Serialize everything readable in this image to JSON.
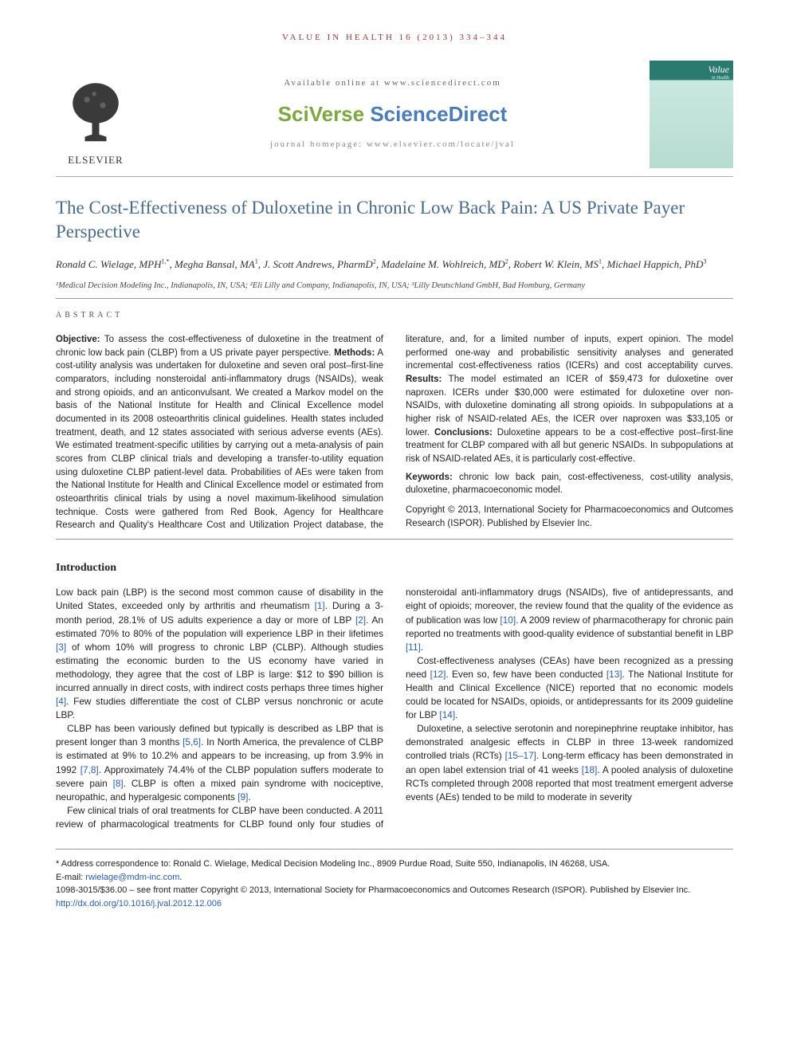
{
  "journal_header": "VALUE IN HEALTH 16 (2013) 334–344",
  "banner": {
    "available_text": "Available online at www.sciencedirect.com",
    "sciverse_sci": "SciVerse ",
    "sciverse_direct": "ScienceDirect",
    "homepage_text": "journal homepage: www.elsevier.com/locate/jval",
    "elsevier_name": "ELSEVIER",
    "cover_title": "Value",
    "cover_sub": "in Health"
  },
  "title": "The Cost-Effectiveness of Duloxetine in Chronic Low Back Pain: A US Private Payer Perspective",
  "authors_html": "Ronald C. Wielage, MPH<sup>1,*</sup>, Megha Bansal, MA<sup>1</sup>, J. Scott Andrews, PharmD<sup>2</sup>, Madelaine M. Wohlreich, MD<sup>2</sup>, Robert W. Klein, MS<sup>1</sup>, Michael Happich, PhD<sup>3</sup>",
  "affiliations": "¹Medical Decision Modeling Inc., Indianapolis, IN, USA; ²Eli Lilly and Company, Indianapolis, IN, USA; ³Lilly Deutschland GmbH, Bad Homburg, Germany",
  "abstract_label": "ABSTRACT",
  "abstract": {
    "objective_label": "Objective:",
    "objective": " To assess the cost-effectiveness of duloxetine in the treatment of chronic low back pain (CLBP) from a US private payer perspective. ",
    "methods_label": "Methods:",
    "methods": " A cost-utility analysis was undertaken for duloxetine and seven oral post–first-line comparators, including nonsteroidal anti-inflammatory drugs (NSAIDs), weak and strong opioids, and an anticonvulsant. We created a Markov model on the basis of the National Institute for Health and Clinical Excellence model documented in its 2008 osteoarthritis clinical guidelines. Health states included treatment, death, and 12 states associated with serious adverse events (AEs). We estimated treatment-specific utilities by carrying out a meta-analysis of pain scores from CLBP clinical trials and developing a transfer-to-utility equation using duloxetine CLBP patient-level data. Probabilities of AEs were taken from the National Institute for Health and Clinical Excellence model or estimated from osteoarthritis clinical trials by using a novel maximum-likelihood simulation technique. Costs were gathered from Red Book, Agency for Healthcare Research and Quality's Healthcare Cost and Utilization Project database, the literature, and, for a limited number of inputs, expert opinion. The model performed one-way and probabilistic sensitivity analyses and generated incremental cost-effectiveness ratios (ICERs) and cost acceptability curves. ",
    "results_label": "Results:",
    "results": " The model estimated an ICER of $59,473 for duloxetine over naproxen. ICERs under $30,000 were estimated for duloxetine over non-NSAIDs, with duloxetine dominating all strong opioids. In subpopulations at a higher risk of NSAID-related AEs, the ICER over naproxen was $33,105 or lower. ",
    "conclusions_label": "Conclusions:",
    "conclusions": " Duloxetine appears to be a cost-effective post–first-line treatment for CLBP compared with all but generic NSAIDs. In subpopulations at risk of NSAID-related AEs, it is particularly cost-effective.",
    "keywords_label": "Keywords:",
    "keywords": " chronic low back pain, cost-effectiveness, cost-utility analysis, duloxetine, pharmacoeconomic model.",
    "copyright": "Copyright © 2013, International Society for Pharmacoeconomics and Outcomes Research (ISPOR). Published by Elsevier Inc."
  },
  "intro_heading": "Introduction",
  "intro_paragraphs": [
    "Low back pain (LBP) is the second most common cause of disability in the United States, exceeded only by arthritis and rheumatism [1]. During a 3-month period, 28.1% of US adults experience a day or more of LBP [2]. An estimated 70% to 80% of the population will experience LBP in their lifetimes [3] of whom 10% will progress to chronic LBP (CLBP). Although studies estimating the economic burden to the US economy have varied in methodology, they agree that the cost of LBP is large: $12 to $90 billion is incurred annually in direct costs, with indirect costs perhaps three times higher [4]. Few studies differentiate the cost of CLBP versus nonchronic or acute LBP.",
    "CLBP has been variously defined but typically is described as LBP that is present longer than 3 months [5,6]. In North America, the prevalence of CLBP is estimated at 9% to 10.2% and appears to be increasing, up from 3.9% in 1992 [7,8]. Approximately 74.4% of the CLBP population suffers moderate to severe pain [8]. CLBP is often a mixed pain syndrome with nociceptive, neuropathic, and hyperalgesic components [9].",
    "Few clinical trials of oral treatments for CLBP have been conducted. A 2011 review of pharmacological treatments for CLBP found only four studies of nonsteroidal anti-inflammatory drugs (NSAIDs), five of antidepressants, and eight of opioids; moreover, the review found that the quality of the evidence as of publication was low [10]. A 2009 review of pharmacotherapy for chronic pain reported no treatments with good-quality evidence of substantial benefit in LBP [11].",
    "Cost-effectiveness analyses (CEAs) have been recognized as a pressing need [12]. Even so, few have been conducted [13]. The National Institute for Health and Clinical Excellence (NICE) reported that no economic models could be located for NSAIDs, opioids, or antidepressants for its 2009 guideline for LBP [14].",
    "Duloxetine, a selective serotonin and norepinephrine reuptake inhibitor, has demonstrated analgesic effects in CLBP in three 13-week randomized controlled trials (RCTs) [15–17]. Long-term efficacy has been demonstrated in an open label extension trial of 41 weeks [18]. A pooled analysis of duloxetine RCTs completed through 2008 reported that most treatment emergent adverse events (AEs) tended to be mild to moderate in severity"
  ],
  "footnotes": {
    "correspondence": "* Address correspondence to: Ronald C. Wielage, Medical Decision Modeling Inc., 8909 Purdue Road, Suite 550, Indianapolis, IN 46268, USA.",
    "email_label": "E-mail: ",
    "email": "rwielage@mdm-inc.com",
    "issn_line": "1098-3015/$36.00 – see front matter Copyright © 2013, International Society for Pharmacoeconomics and Outcomes Research (ISPOR). Published by Elsevier Inc.",
    "doi": "http://dx.doi.org/10.1016/j.jval.2012.12.006"
  },
  "colors": {
    "title_color": "#4a6a8a",
    "header_color": "#963939",
    "link_color": "#2a5db0",
    "sciverse_green": "#7ba83f",
    "sciverse_blue": "#4a7db8",
    "cover_teal": "#2a7a6f"
  },
  "refs_in_body": [
    "[1]",
    "[2]",
    "[3]",
    "[4]",
    "[5,6]",
    "[7,8]",
    "[8]",
    "[9]",
    "[10]",
    "[11]",
    "[12]",
    "[13]",
    "[14]",
    "[15–17]",
    "[18]"
  ]
}
